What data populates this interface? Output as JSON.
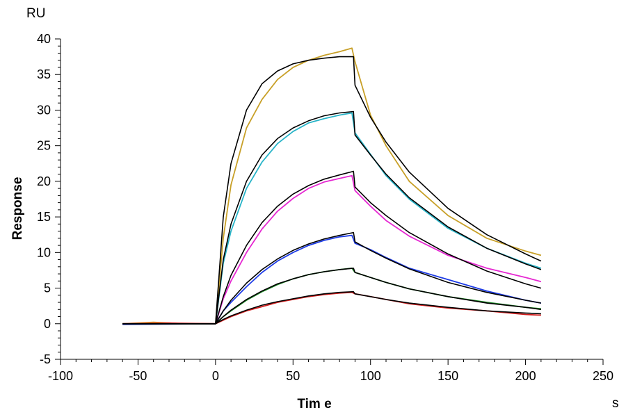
{
  "chart_data": {
    "type": "line",
    "title": "",
    "xlabel": "Tim e",
    "ylabel": "Response",
    "x_unit": "s",
    "y_unit": "RU",
    "xlim": [
      -100,
      250
    ],
    "ylim": [
      -5,
      40
    ],
    "x_ticks": [
      -100,
      -50,
      0,
      50,
      100,
      150,
      200,
      250
    ],
    "y_ticks": [
      -5,
      0,
      5,
      10,
      15,
      20,
      25,
      30,
      35,
      40
    ],
    "grid": false,
    "legend": "none",
    "series": [
      {
        "color": "#c8a028",
        "fit_color": "#000000",
        "data": [
          [
            -60,
            0.0
          ],
          [
            -40,
            0.2
          ],
          [
            -20,
            0.0
          ],
          [
            0,
            0.0
          ],
          [
            5,
            12.0
          ],
          [
            10,
            19.5
          ],
          [
            20,
            27.5
          ],
          [
            30,
            31.5
          ],
          [
            40,
            34.3
          ],
          [
            50,
            36.0
          ],
          [
            60,
            37.0
          ],
          [
            70,
            37.7
          ],
          [
            80,
            38.2
          ],
          [
            88,
            38.7
          ],
          [
            90,
            36.8
          ],
          [
            100,
            29.3
          ],
          [
            110,
            25.0
          ],
          [
            125,
            20.0
          ],
          [
            150,
            15.2
          ],
          [
            175,
            12.0
          ],
          [
            200,
            10.2
          ],
          [
            210,
            9.6
          ]
        ],
        "fit": [
          [
            -60,
            0.0
          ],
          [
            0,
            0.0
          ],
          [
            5,
            15.0
          ],
          [
            10,
            22.5
          ],
          [
            20,
            30.0
          ],
          [
            30,
            33.7
          ],
          [
            40,
            35.5
          ],
          [
            50,
            36.5
          ],
          [
            60,
            37.0
          ],
          [
            70,
            37.3
          ],
          [
            80,
            37.5
          ],
          [
            89,
            37.5
          ],
          [
            90,
            33.5
          ],
          [
            100,
            29.0
          ],
          [
            110,
            25.5
          ],
          [
            125,
            21.3
          ],
          [
            150,
            16.2
          ],
          [
            175,
            12.5
          ],
          [
            200,
            9.8
          ],
          [
            210,
            8.8
          ]
        ]
      },
      {
        "color": "#28b4c8",
        "fit_color": "#000000",
        "data": [
          [
            -60,
            0.0
          ],
          [
            0,
            0.0
          ],
          [
            5,
            8.5
          ],
          [
            10,
            13.0
          ],
          [
            20,
            19.0
          ],
          [
            30,
            22.7
          ],
          [
            40,
            25.3
          ],
          [
            50,
            27.0
          ],
          [
            60,
            28.2
          ],
          [
            70,
            28.8
          ],
          [
            80,
            29.3
          ],
          [
            88,
            29.6
          ],
          [
            90,
            26.8
          ],
          [
            100,
            23.8
          ],
          [
            110,
            20.8
          ],
          [
            125,
            17.5
          ],
          [
            150,
            13.4
          ],
          [
            175,
            10.6
          ],
          [
            200,
            8.5
          ],
          [
            210,
            7.8
          ]
        ],
        "fit": [
          [
            -60,
            0.0
          ],
          [
            0,
            0.0
          ],
          [
            5,
            9.0
          ],
          [
            10,
            14.0
          ],
          [
            20,
            20.0
          ],
          [
            30,
            23.7
          ],
          [
            40,
            26.0
          ],
          [
            50,
            27.5
          ],
          [
            60,
            28.5
          ],
          [
            70,
            29.2
          ],
          [
            80,
            29.6
          ],
          [
            89,
            29.8
          ],
          [
            90,
            26.5
          ],
          [
            100,
            23.7
          ],
          [
            110,
            21.0
          ],
          [
            125,
            17.7
          ],
          [
            150,
            13.6
          ],
          [
            175,
            10.6
          ],
          [
            200,
            8.4
          ],
          [
            210,
            7.6
          ]
        ]
      },
      {
        "color": "#e628d2",
        "fit_color": "#000000",
        "data": [
          [
            -60,
            0.0
          ],
          [
            0,
            0.0
          ],
          [
            5,
            3.5
          ],
          [
            10,
            6.0
          ],
          [
            20,
            10.0
          ],
          [
            30,
            13.3
          ],
          [
            40,
            15.8
          ],
          [
            50,
            17.6
          ],
          [
            60,
            19.0
          ],
          [
            70,
            19.9
          ],
          [
            80,
            20.4
          ],
          [
            88,
            20.8
          ],
          [
            90,
            18.7
          ],
          [
            100,
            16.5
          ],
          [
            110,
            14.5
          ],
          [
            125,
            12.3
          ],
          [
            150,
            9.6
          ],
          [
            175,
            7.8
          ],
          [
            200,
            6.5
          ],
          [
            210,
            5.9
          ]
        ],
        "fit": [
          [
            -60,
            0.0
          ],
          [
            0,
            0.0
          ],
          [
            5,
            3.8
          ],
          [
            10,
            6.8
          ],
          [
            20,
            11.0
          ],
          [
            30,
            14.2
          ],
          [
            40,
            16.5
          ],
          [
            50,
            18.2
          ],
          [
            60,
            19.4
          ],
          [
            70,
            20.3
          ],
          [
            80,
            20.9
          ],
          [
            89,
            21.4
          ],
          [
            90,
            19.2
          ],
          [
            100,
            17.0
          ],
          [
            110,
            15.2
          ],
          [
            125,
            12.8
          ],
          [
            150,
            9.8
          ],
          [
            175,
            7.4
          ],
          [
            200,
            5.6
          ],
          [
            210,
            5.0
          ]
        ]
      },
      {
        "color": "#1e3ce6",
        "fit_color": "#000000",
        "data": [
          [
            -60,
            -0.1
          ],
          [
            0,
            0.0
          ],
          [
            5,
            1.8
          ],
          [
            10,
            3.0
          ],
          [
            20,
            5.2
          ],
          [
            30,
            7.2
          ],
          [
            40,
            8.8
          ],
          [
            50,
            10.0
          ],
          [
            60,
            11.0
          ],
          [
            70,
            11.7
          ],
          [
            80,
            12.2
          ],
          [
            88,
            12.4
          ],
          [
            90,
            11.3
          ],
          [
            100,
            10.4
          ],
          [
            110,
            9.3
          ],
          [
            125,
            7.8
          ],
          [
            150,
            6.2
          ],
          [
            175,
            4.6
          ],
          [
            200,
            3.3
          ],
          [
            210,
            2.9
          ]
        ],
        "fit": [
          [
            -60,
            0.0
          ],
          [
            0,
            0.0
          ],
          [
            5,
            1.8
          ],
          [
            10,
            3.3
          ],
          [
            20,
            5.7
          ],
          [
            30,
            7.6
          ],
          [
            40,
            9.1
          ],
          [
            50,
            10.3
          ],
          [
            60,
            11.2
          ],
          [
            70,
            11.9
          ],
          [
            80,
            12.4
          ],
          [
            89,
            12.8
          ],
          [
            90,
            11.5
          ],
          [
            100,
            10.3
          ],
          [
            110,
            9.2
          ],
          [
            125,
            7.7
          ],
          [
            150,
            5.8
          ],
          [
            175,
            4.4
          ],
          [
            200,
            3.3
          ],
          [
            210,
            2.9
          ]
        ]
      },
      {
        "color": "#1e8c28",
        "fit_color": "#000000",
        "data": [
          [
            -60,
            0.0
          ],
          [
            0,
            0.0
          ],
          [
            5,
            1.0
          ],
          [
            10,
            1.8
          ],
          [
            20,
            3.3
          ],
          [
            30,
            4.5
          ],
          [
            40,
            5.5
          ],
          [
            50,
            6.3
          ],
          [
            60,
            6.9
          ],
          [
            70,
            7.3
          ],
          [
            80,
            7.6
          ],
          [
            88,
            7.8
          ],
          [
            90,
            7.2
          ],
          [
            100,
            6.5
          ],
          [
            110,
            5.8
          ],
          [
            125,
            4.9
          ],
          [
            150,
            3.8
          ],
          [
            175,
            3.0
          ],
          [
            200,
            2.3
          ],
          [
            210,
            2.1
          ]
        ],
        "fit": [
          [
            -60,
            0.0
          ],
          [
            0,
            0.0
          ],
          [
            5,
            1.0
          ],
          [
            10,
            1.9
          ],
          [
            20,
            3.4
          ],
          [
            30,
            4.6
          ],
          [
            40,
            5.6
          ],
          [
            50,
            6.3
          ],
          [
            60,
            6.9
          ],
          [
            70,
            7.3
          ],
          [
            80,
            7.6
          ],
          [
            89,
            7.8
          ],
          [
            90,
            7.2
          ],
          [
            100,
            6.5
          ],
          [
            110,
            5.8
          ],
          [
            125,
            4.9
          ],
          [
            150,
            3.8
          ],
          [
            175,
            2.9
          ],
          [
            200,
            2.3
          ],
          [
            210,
            2.0
          ]
        ]
      },
      {
        "color": "#d21e1e",
        "fit_color": "#000000",
        "data": [
          [
            -60,
            0.0
          ],
          [
            -30,
            0.1
          ],
          [
            0,
            0.0
          ],
          [
            5,
            0.5
          ],
          [
            10,
            1.0
          ],
          [
            20,
            1.8
          ],
          [
            30,
            2.4
          ],
          [
            40,
            3.0
          ],
          [
            50,
            3.4
          ],
          [
            60,
            3.8
          ],
          [
            70,
            4.1
          ],
          [
            80,
            4.3
          ],
          [
            88,
            4.4
          ],
          [
            90,
            4.2
          ],
          [
            100,
            3.8
          ],
          [
            110,
            3.4
          ],
          [
            125,
            2.8
          ],
          [
            150,
            2.2
          ],
          [
            175,
            1.8
          ],
          [
            200,
            1.3
          ],
          [
            210,
            1.2
          ]
        ],
        "fit": [
          [
            -60,
            0.0
          ],
          [
            0,
            0.0
          ],
          [
            5,
            0.6
          ],
          [
            10,
            1.1
          ],
          [
            20,
            1.9
          ],
          [
            30,
            2.6
          ],
          [
            40,
            3.1
          ],
          [
            50,
            3.5
          ],
          [
            60,
            3.9
          ],
          [
            70,
            4.2
          ],
          [
            80,
            4.4
          ],
          [
            89,
            4.5
          ],
          [
            90,
            4.2
          ],
          [
            100,
            3.8
          ],
          [
            110,
            3.4
          ],
          [
            125,
            2.9
          ],
          [
            150,
            2.3
          ],
          [
            175,
            1.8
          ],
          [
            200,
            1.5
          ],
          [
            210,
            1.4
          ]
        ]
      }
    ]
  }
}
